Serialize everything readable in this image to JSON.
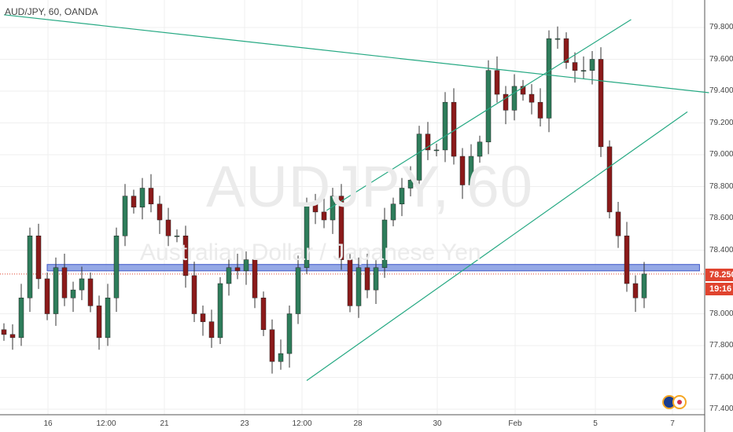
{
  "header": {
    "title": "AUD/JPY, 60, OANDA"
  },
  "watermark": {
    "symbol": "AUDJPY, 60",
    "description": "Australian Dollar / Japanese Yen"
  },
  "price_tag": {
    "price": "78.250",
    "countdown": "19:16",
    "color": "#e0442f"
  },
  "colors": {
    "up": "#2e7d5b",
    "down": "#8b1a1a",
    "trendline": "#26a983",
    "zone": "#7b93e0",
    "zone_border": "#3c57c8",
    "grid": "#efefef"
  },
  "chart_data": {
    "type": "candlestick",
    "title": "AUD/JPY, 60, OANDA",
    "ylim": [
      77.35,
      79.9
    ],
    "yticks": [
      "79.800",
      "79.600",
      "79.400",
      "79.200",
      "79.000",
      "78.800",
      "78.600",
      "78.400",
      "78.250",
      "78.000",
      "77.800",
      "77.600",
      "77.400"
    ],
    "xticks": [
      "16",
      "12:00",
      "21",
      "23",
      "12:00",
      "28",
      "30",
      "Feb",
      "5",
      "7"
    ],
    "closes": [
      77.87,
      77.85,
      78.1,
      78.49,
      78.22,
      78.0,
      78.29,
      78.1,
      78.15,
      78.22,
      78.05,
      77.85,
      78.1,
      78.49,
      78.74,
      78.67,
      78.79,
      78.69,
      78.59,
      78.49,
      78.49,
      78.24,
      78.0,
      77.95,
      77.85,
      78.19,
      78.29,
      78.27,
      78.34,
      78.1,
      77.9,
      77.7,
      77.75,
      78.0,
      78.29,
      78.69,
      78.64,
      78.59,
      78.74,
      78.34,
      78.05,
      78.29,
      78.15,
      78.29,
      78.59,
      78.69,
      78.79,
      78.84,
      79.13,
      79.03,
      79.03,
      79.33,
      78.99,
      78.81,
      78.99,
      79.08,
      79.53,
      79.38,
      79.28,
      79.43,
      79.38,
      79.33,
      79.23,
      79.73,
      79.73,
      79.58,
      79.53,
      79.53,
      79.6,
      79.05,
      78.64,
      78.49,
      78.19,
      78.1,
      78.25
    ],
    "trendlines": [
      {
        "from_bar": 0,
        "from_price": 79.88,
        "to_bar": 81.5,
        "to_price": 79.39
      },
      {
        "from_bar": 37.3,
        "from_price": 78.65,
        "to_bar": 72.5,
        "to_price": 79.85
      },
      {
        "from_bar": 35,
        "from_price": 77.58,
        "to_bar": 79,
        "to_price": 79.27
      }
    ],
    "zone": {
      "from_bar": 5,
      "to_bar": 80.4,
      "top": 78.31,
      "bottom": 78.27
    },
    "current_price_line": 78.25
  }
}
